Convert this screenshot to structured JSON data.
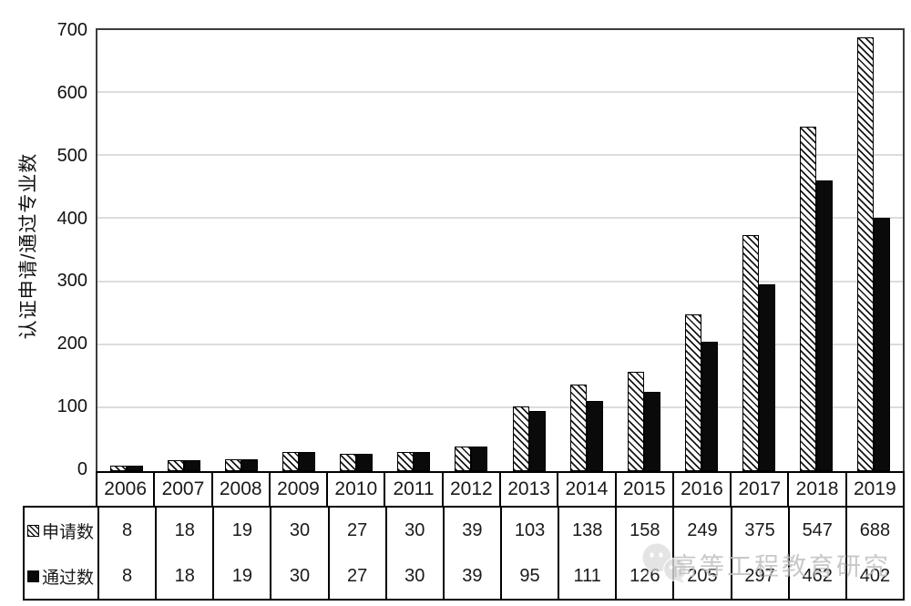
{
  "chart_data": {
    "type": "bar",
    "title": "",
    "xlabel": "",
    "ylabel": "认证申请/通过专业数",
    "categories": [
      "2006",
      "2007",
      "2008",
      "2009",
      "2010",
      "2011",
      "2012",
      "2013",
      "2014",
      "2015",
      "2016",
      "2017",
      "2018",
      "2019"
    ],
    "series": [
      {
        "name": "申请数",
        "style": "hatched-diagonal",
        "values": [
          8,
          18,
          19,
          30,
          27,
          30,
          39,
          103,
          138,
          158,
          249,
          375,
          547,
          688
        ]
      },
      {
        "name": "通过数",
        "style": "solid-black",
        "values": [
          8,
          18,
          19,
          30,
          27,
          30,
          39,
          95,
          111,
          126,
          205,
          297,
          462,
          402
        ]
      }
    ],
    "ylim": [
      0,
      700
    ],
    "yticks": [
      0,
      100,
      200,
      300,
      400,
      500,
      600,
      700
    ],
    "grid": "horizontal-light-gray",
    "legend_position": "table-left-column",
    "bar_color_solid": "#0a0a0a",
    "gridline_color": "#dcdcdc"
  },
  "watermark": {
    "text": "高等工程教育研究",
    "logo": "wechat-logo-icon",
    "color": "#bfbfbf"
  },
  "colors": {
    "background": "#ffffff",
    "axis_border": "#3c3c3c",
    "table_border": "#000000",
    "text": "#1a1a1a"
  }
}
